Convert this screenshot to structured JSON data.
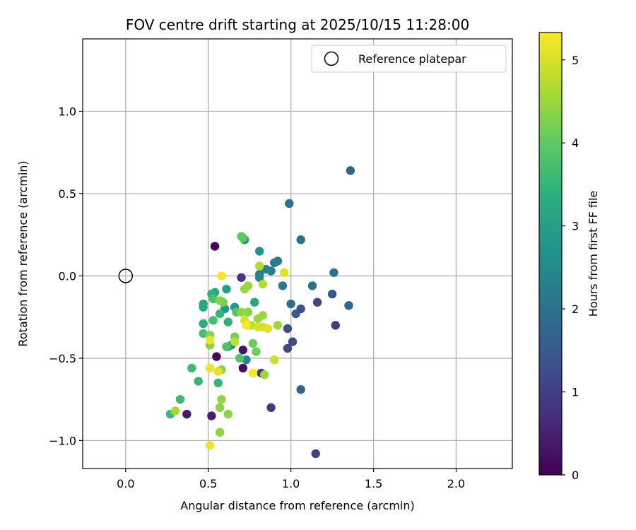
{
  "chart_data": {
    "type": "scatter",
    "title": "FOV centre drift starting at 2025/10/15 11:28:00",
    "xlabel": "Angular distance from reference (arcmin)",
    "ylabel": "Rotation from reference (arcmin)",
    "xlim": [
      -0.26,
      2.34
    ],
    "ylim": [
      -1.17,
      1.44
    ],
    "xticks": [
      0.0,
      0.5,
      1.0,
      1.5,
      2.0
    ],
    "xtick_labels": [
      "0.0",
      "0.5",
      "1.0",
      "1.5",
      "2.0"
    ],
    "yticks": [
      -1.0,
      -0.5,
      0.0,
      0.5,
      1.0
    ],
    "ytick_labels": [
      "−1.0",
      "−0.5",
      "0.0",
      "0.5",
      "1.0"
    ],
    "grid": true,
    "legend": {
      "placement": "top-right",
      "entries": [
        "Reference platepar"
      ]
    },
    "reference_point": {
      "x": 0.0,
      "y": 0.0,
      "label": "Reference platepar"
    },
    "colorbar": {
      "label": "Hours from first FF file",
      "colormap": "viridis",
      "range": [
        0,
        5.33
      ],
      "ticks": [
        0,
        1,
        2,
        3,
        4,
        5
      ],
      "tick_labels": [
        "0",
        "1",
        "2",
        "3",
        "4",
        "5"
      ]
    },
    "points": [
      {
        "x": 0.54,
        "y": 0.18,
        "h": 0.05
      },
      {
        "x": 0.55,
        "y": -0.49,
        "h": 0.1
      },
      {
        "x": 0.71,
        "y": -0.56,
        "h": 0.15
      },
      {
        "x": 0.71,
        "y": -0.45,
        "h": 0.3
      },
      {
        "x": 0.37,
        "y": -0.84,
        "h": 0.35
      },
      {
        "x": 0.52,
        "y": -0.85,
        "h": 0.45
      },
      {
        "x": 0.7,
        "y": -0.01,
        "h": 0.8
      },
      {
        "x": 0.88,
        "y": -0.8,
        "h": 0.9
      },
      {
        "x": 0.82,
        "y": -0.59,
        "h": 0.85
      },
      {
        "x": 1.15,
        "y": -1.08,
        "h": 1.0
      },
      {
        "x": 1.27,
        "y": -0.3,
        "h": 1.0
      },
      {
        "x": 1.16,
        "y": -0.16,
        "h": 1.1
      },
      {
        "x": 0.98,
        "y": -0.44,
        "h": 1.2
      },
      {
        "x": 1.01,
        "y": -0.4,
        "h": 1.2
      },
      {
        "x": 0.98,
        "y": -0.32,
        "h": 1.3
      },
      {
        "x": 1.06,
        "y": -0.2,
        "h": 1.3
      },
      {
        "x": 1.25,
        "y": -0.11,
        "h": 1.4
      },
      {
        "x": 1.03,
        "y": -0.23,
        "h": 1.5
      },
      {
        "x": 1.06,
        "y": -0.69,
        "h": 1.7
      },
      {
        "x": 1.35,
        "y": -0.18,
        "h": 1.8
      },
      {
        "x": 1.0,
        "y": -0.17,
        "h": 1.9
      },
      {
        "x": 1.13,
        "y": -0.06,
        "h": 2.0
      },
      {
        "x": 1.26,
        "y": 0.02,
        "h": 1.9
      },
      {
        "x": 1.36,
        "y": 0.64,
        "h": 1.8
      },
      {
        "x": 0.99,
        "y": 0.44,
        "h": 2.0
      },
      {
        "x": 1.06,
        "y": 0.22,
        "h": 2.0
      },
      {
        "x": 0.95,
        "y": -0.06,
        "h": 2.1
      },
      {
        "x": 0.9,
        "y": 0.08,
        "h": 2.1
      },
      {
        "x": 0.92,
        "y": 0.09,
        "h": 2.2
      },
      {
        "x": 0.88,
        "y": 0.03,
        "h": 2.2
      },
      {
        "x": 0.85,
        "y": 0.04,
        "h": 2.3
      },
      {
        "x": 0.81,
        "y": 0.01,
        "h": 2.3
      },
      {
        "x": 0.81,
        "y": -0.01,
        "h": 2.4
      },
      {
        "x": 0.73,
        "y": -0.51,
        "h": 2.5
      },
      {
        "x": 0.72,
        "y": 0.22,
        "h": 2.6
      },
      {
        "x": 0.81,
        "y": 0.15,
        "h": 2.7
      },
      {
        "x": 0.66,
        "y": -0.19,
        "h": 2.8
      },
      {
        "x": 0.64,
        "y": -0.42,
        "h": 2.6
      },
      {
        "x": 0.62,
        "y": -0.43,
        "h": 2.9
      },
      {
        "x": 0.6,
        "y": -0.2,
        "h": 2.8
      },
      {
        "x": 0.61,
        "y": -0.08,
        "h": 3.0
      },
      {
        "x": 0.54,
        "y": -0.1,
        "h": 3.1
      },
      {
        "x": 0.47,
        "y": -0.17,
        "h": 3.1
      },
      {
        "x": 0.47,
        "y": -0.19,
        "h": 3.2
      },
      {
        "x": 0.47,
        "y": -0.29,
        "h": 3.3
      },
      {
        "x": 0.78,
        "y": -0.16,
        "h": 3.2
      },
      {
        "x": 0.62,
        "y": -0.28,
        "h": 3.4
      },
      {
        "x": 0.57,
        "y": -0.23,
        "h": 3.5
      },
      {
        "x": 0.52,
        "y": -0.11,
        "h": 3.4
      },
      {
        "x": 0.56,
        "y": -0.65,
        "h": 3.5
      },
      {
        "x": 0.44,
        "y": -0.64,
        "h": 3.5
      },
      {
        "x": 0.4,
        "y": -0.56,
        "h": 3.6
      },
      {
        "x": 0.33,
        "y": -0.75,
        "h": 3.6
      },
      {
        "x": 0.27,
        "y": -0.84,
        "h": 3.6
      },
      {
        "x": 0.47,
        "y": -0.35,
        "h": 3.7
      },
      {
        "x": 0.53,
        "y": -0.27,
        "h": 3.7
      },
      {
        "x": 0.53,
        "y": -0.14,
        "h": 3.8
      },
      {
        "x": 0.61,
        "y": -0.43,
        "h": 3.8
      },
      {
        "x": 0.67,
        "y": -0.22,
        "h": 3.9
      },
      {
        "x": 0.69,
        "y": -0.5,
        "h": 3.9
      },
      {
        "x": 0.7,
        "y": 0.24,
        "h": 4.0
      },
      {
        "x": 0.71,
        "y": 0.23,
        "h": 4.0
      },
      {
        "x": 0.79,
        "y": -0.46,
        "h": 4.1
      },
      {
        "x": 0.77,
        "y": -0.41,
        "h": 4.1
      },
      {
        "x": 0.66,
        "y": -0.37,
        "h": 4.2
      },
      {
        "x": 0.59,
        "y": -0.16,
        "h": 4.2
      },
      {
        "x": 0.57,
        "y": -0.15,
        "h": 4.3
      },
      {
        "x": 0.51,
        "y": -0.42,
        "h": 4.3
      },
      {
        "x": 0.51,
        "y": -0.36,
        "h": 4.3
      },
      {
        "x": 0.58,
        "y": -0.57,
        "h": 4.3
      },
      {
        "x": 0.58,
        "y": -0.75,
        "h": 4.4
      },
      {
        "x": 0.62,
        "y": -0.84,
        "h": 4.4
      },
      {
        "x": 0.57,
        "y": -0.95,
        "h": 4.4
      },
      {
        "x": 0.57,
        "y": -0.8,
        "h": 4.4
      },
      {
        "x": 0.7,
        "y": -0.22,
        "h": 4.4
      },
      {
        "x": 0.74,
        "y": -0.22,
        "h": 4.4
      },
      {
        "x": 0.74,
        "y": -0.06,
        "h": 4.5
      },
      {
        "x": 0.72,
        "y": -0.08,
        "h": 4.5
      },
      {
        "x": 0.8,
        "y": -0.26,
        "h": 4.5
      },
      {
        "x": 0.83,
        "y": -0.24,
        "h": 4.5
      },
      {
        "x": 0.84,
        "y": -0.6,
        "h": 4.5
      },
      {
        "x": 0.92,
        "y": -0.3,
        "h": 4.5
      },
      {
        "x": 0.3,
        "y": -0.82,
        "h": 4.6
      },
      {
        "x": 0.83,
        "y": -0.05,
        "h": 4.7
      },
      {
        "x": 0.81,
        "y": 0.06,
        "h": 4.7
      },
      {
        "x": 0.76,
        "y": -0.3,
        "h": 4.8
      },
      {
        "x": 0.66,
        "y": -0.4,
        "h": 4.8
      },
      {
        "x": 0.9,
        "y": -0.51,
        "h": 4.9
      },
      {
        "x": 0.8,
        "y": -0.31,
        "h": 5.0
      },
      {
        "x": 0.72,
        "y": -0.27,
        "h": 5.0
      },
      {
        "x": 0.83,
        "y": -0.31,
        "h": 5.0
      },
      {
        "x": 0.86,
        "y": -0.32,
        "h": 5.1
      },
      {
        "x": 0.96,
        "y": 0.02,
        "h": 5.1
      },
      {
        "x": 0.56,
        "y": -0.58,
        "h": 5.1
      },
      {
        "x": 0.51,
        "y": -0.39,
        "h": 5.2
      },
      {
        "x": 0.51,
        "y": -0.56,
        "h": 5.2
      },
      {
        "x": 0.51,
        "y": -1.03,
        "h": 5.2
      },
      {
        "x": 0.58,
        "y": 0.0,
        "h": 5.3
      },
      {
        "x": 0.77,
        "y": -0.59,
        "h": 5.3
      },
      {
        "x": 0.73,
        "y": -0.3,
        "h": 5.3
      }
    ]
  }
}
